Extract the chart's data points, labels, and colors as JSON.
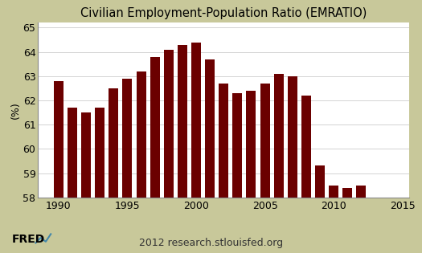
{
  "title": "Civilian Employment-Population Ratio (EMRATIO)",
  "ylabel": "(%)",
  "footer": "2012 research.stlouisfed.org",
  "xlim": [
    1988.5,
    2015.5
  ],
  "ylim": [
    58,
    65.2
  ],
  "yticks": [
    58,
    59,
    60,
    61,
    62,
    63,
    64,
    65
  ],
  "xticks": [
    1990,
    1995,
    2000,
    2005,
    2010,
    2015
  ],
  "bar_color": "#6B0000",
  "background_color": "#C8C89A",
  "plot_bg_color": "#FFFFFF",
  "years": [
    1990,
    1991,
    1992,
    1993,
    1994,
    1995,
    1996,
    1997,
    1998,
    1999,
    2000,
    2001,
    2002,
    2003,
    2004,
    2005,
    2006,
    2007,
    2008,
    2009,
    2010,
    2011,
    2012
  ],
  "values": [
    62.8,
    61.7,
    61.5,
    61.7,
    62.5,
    62.9,
    63.2,
    63.8,
    64.1,
    64.3,
    64.4,
    63.7,
    62.7,
    62.3,
    62.4,
    62.7,
    63.1,
    63.0,
    62.2,
    59.3,
    58.5,
    58.4,
    58.5
  ],
  "title_fontsize": 10.5,
  "tick_fontsize": 9,
  "ylabel_fontsize": 9,
  "footer_fontsize": 9,
  "bar_width": 0.7
}
